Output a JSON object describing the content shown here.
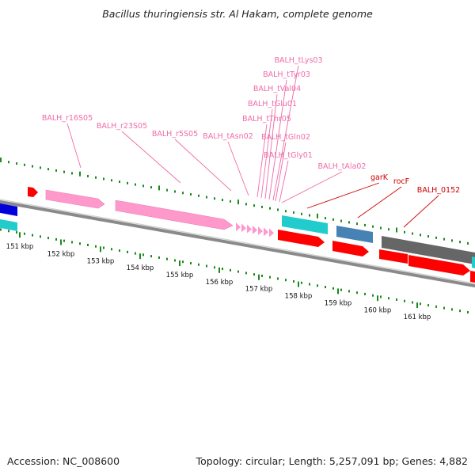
{
  "title": "Bacillus thuringiensis str. Al Hakam, complete genome",
  "footer": {
    "accession": "Accession: NC_008600",
    "summary": "Topology: circular; Length: 5,257,091 bp; Genes: 4,882"
  },
  "colors": {
    "backbone": "#8a8a8a",
    "tick": "#1a8a1a",
    "rrna": "#ff99cc",
    "trna": "#ff99cc",
    "cds_red": "#ff0000",
    "cyan": "#22cccc",
    "blue": "#0000dd",
    "steelblue": "#4682b4",
    "gray": "#666666",
    "rna_label": "#f06ba8",
    "gene_label": "#cc0000"
  },
  "ticks": [
    {
      "label": "151 kbp"
    },
    {
      "label": "152 kbp"
    },
    {
      "label": "153 kbp"
    },
    {
      "label": "154 kbp"
    },
    {
      "label": "155 kbp"
    },
    {
      "label": "156 kbp"
    },
    {
      "label": "157 kbp"
    },
    {
      "label": "158 kbp"
    },
    {
      "label": "159 kbp"
    },
    {
      "label": "160 kbp"
    },
    {
      "label": "161 kbp"
    }
  ],
  "rna_labels": [
    {
      "text": "BALH_r16S05"
    },
    {
      "text": "BALH_r23S05"
    },
    {
      "text": "BALH_r5S05"
    },
    {
      "text": "BALH_tAsn02"
    },
    {
      "text": "BALH_tThr05"
    },
    {
      "text": "BALH_tGlu01"
    },
    {
      "text": "BALH_tVal04"
    },
    {
      "text": "BALH_tTyr03"
    },
    {
      "text": "BALH_tLys03"
    },
    {
      "text": "BALH_tGln02"
    },
    {
      "text": "BALH_tGly01"
    },
    {
      "text": "BALH_tAla02"
    }
  ],
  "gene_labels": [
    {
      "text": "garK"
    },
    {
      "text": "rocF"
    },
    {
      "text": "BALH_0152"
    }
  ]
}
